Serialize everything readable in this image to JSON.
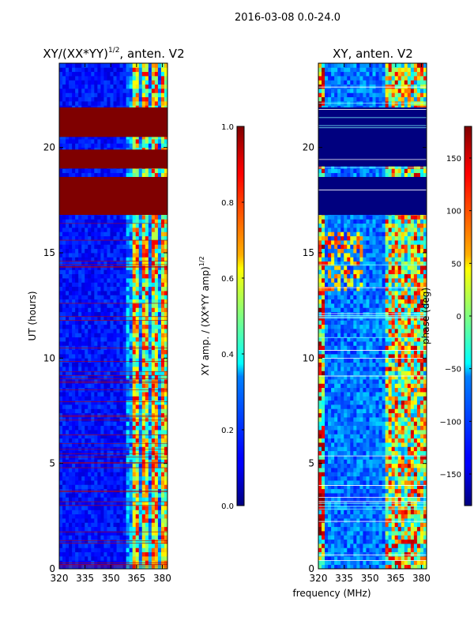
{
  "figure": {
    "suptitle": "2016-03-08 0.0-24.0"
  },
  "chart_data": [
    {
      "type": "heatmap",
      "title": "XY/(XX*YY)^{1/2}, anten. V2",
      "title_main": "XY/(XX*YY)",
      "title_sup": "1/2",
      "title_tail": ", anten. V2",
      "xlabel": "",
      "ylabel": "UT (hours)",
      "xlim": [
        320,
        383
      ],
      "ylim": [
        0,
        24
      ],
      "xticks": [
        320,
        335,
        350,
        365,
        380
      ],
      "yticks": [
        0,
        5,
        10,
        15,
        20
      ],
      "colormap": "jet",
      "colorbar": {
        "label_main": "XY amp. / (XX*YY amp)",
        "label_sup": "1/2",
        "range": [
          0.0,
          1.0
        ],
        "ticks": [
          "0.0",
          "0.2",
          "0.4",
          "0.6",
          "0.8",
          "1.0"
        ],
        "tick_values": [
          0.0,
          0.2,
          0.4,
          0.6,
          0.8,
          1.0
        ]
      },
      "saturated_bands_hours": [
        [
          16.8,
          18.6
        ],
        [
          19.0,
          19.9
        ],
        [
          20.5,
          21.9
        ]
      ],
      "bright_freq_bands_mhz": [
        [
          361,
          365
        ],
        [
          366,
          371
        ],
        [
          373,
          382
        ]
      ]
    },
    {
      "type": "heatmap",
      "title": "XY, anten. V2",
      "xlabel": "frequency (MHz)",
      "ylabel": "",
      "xlim": [
        320,
        383
      ],
      "ylim": [
        0,
        24
      ],
      "xticks": [
        320,
        335,
        350,
        365,
        380
      ],
      "yticks": [
        0,
        5,
        10,
        15,
        20
      ],
      "colormap": "jet",
      "colorbar": {
        "label_main": "phase (deg)",
        "range": [
          -180,
          180
        ],
        "ticks": [
          "150",
          "100",
          "50",
          "0",
          "−50",
          "−100",
          "−150"
        ],
        "tick_values": [
          150,
          100,
          50,
          0,
          -50,
          -100,
          -150
        ]
      },
      "blank_bands_hours": [
        [
          16.8,
          18.6
        ],
        [
          19.1,
          21.9
        ]
      ]
    }
  ]
}
